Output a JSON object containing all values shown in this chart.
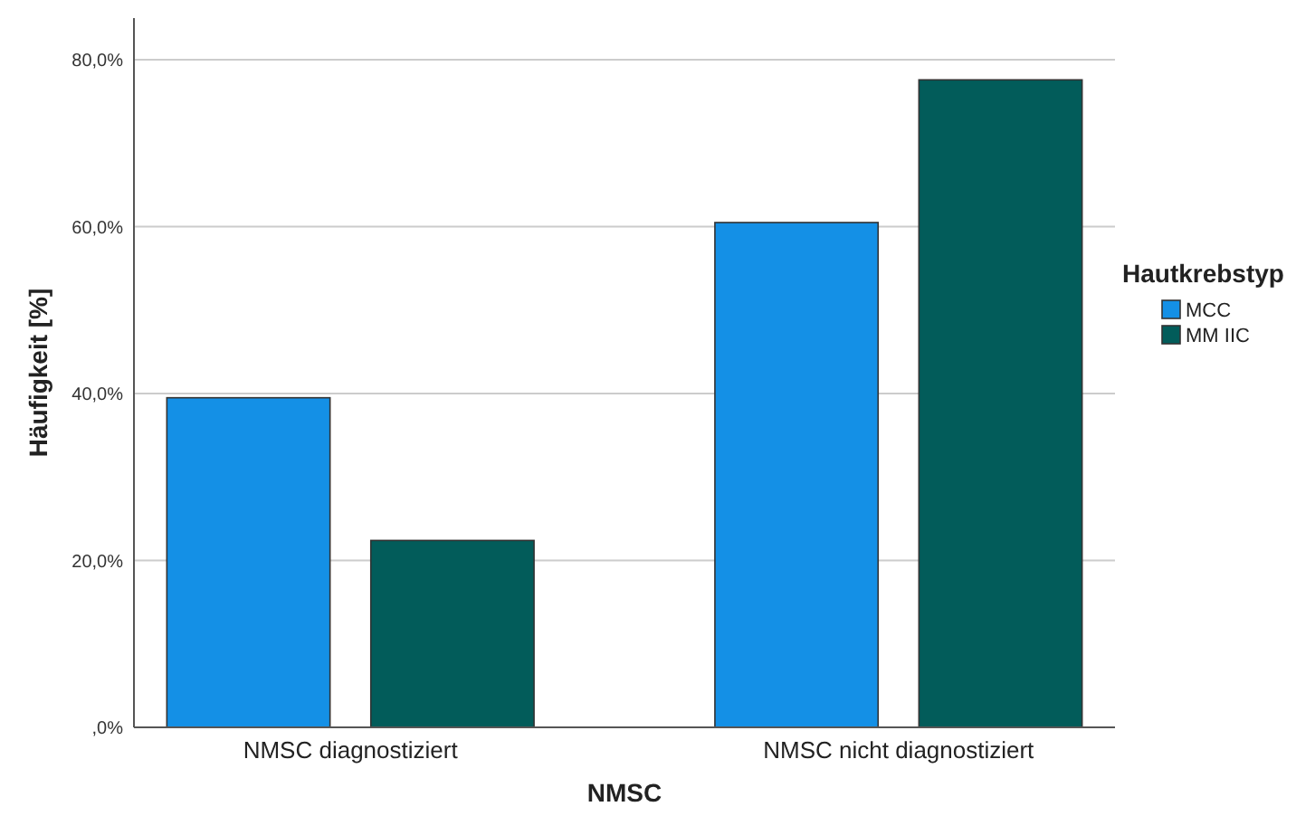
{
  "chart_data": {
    "type": "bar",
    "xlabel": "NMSC",
    "ylabel": "Häufigkeit [%]",
    "legend_title": "Hautkrebstyp",
    "legend": "right",
    "grid": "y",
    "categories": [
      "NMSC diagnostiziert",
      "NMSC nicht diagnostiziert"
    ],
    "series": [
      {
        "name": "MCC",
        "color": "#1490e6",
        "values": [
          39.5,
          60.5
        ]
      },
      {
        "name": "MM IIC",
        "color": "#025c5a",
        "values": [
          22.4,
          77.6
        ]
      }
    ],
    "ylim": [
      0,
      85
    ],
    "yticks": [
      {
        "value": 0,
        "label": ",0%"
      },
      {
        "value": 20,
        "label": "20,0%"
      },
      {
        "value": 40,
        "label": "40,0%"
      },
      {
        "value": 60,
        "label": "60,0%"
      },
      {
        "value": 80,
        "label": "80,0%"
      }
    ]
  }
}
